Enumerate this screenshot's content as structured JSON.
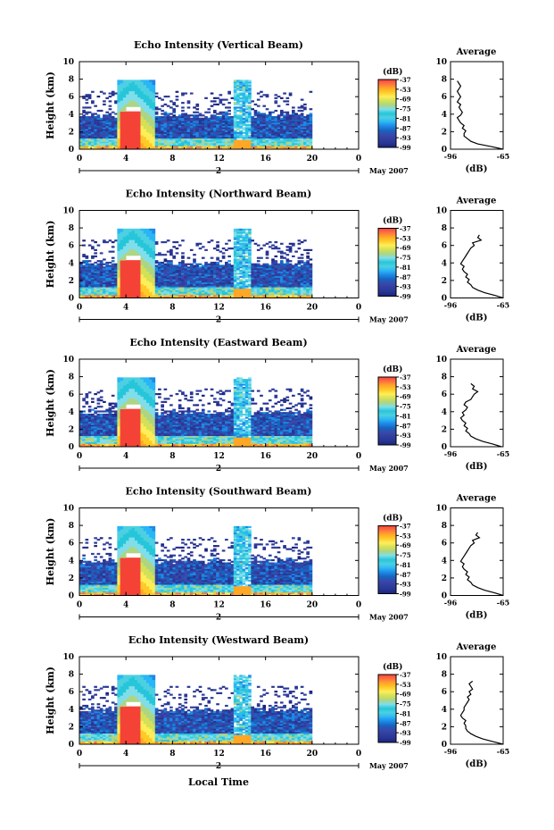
{
  "panel_titles": [
    "Echo Intensity (Vertical Beam)",
    "Echo Intensity (Northward Beam)",
    "Echo Intensity (Eastward Beam)",
    "Echo Intensity (Southward Beam)",
    "Echo Intensity (Westward Beam)"
  ],
  "ylabel": "Height (km)",
  "xlabel": "Local Time",
  "date_day": "2",
  "date_month": "May 2007",
  "x_ticks": [
    "0",
    "4",
    "8",
    "12",
    "16",
    "20",
    "0"
  ],
  "y_ticks": [
    "0",
    "2",
    "4",
    "6",
    "8",
    "10"
  ],
  "colorbar": {
    "unit": "(dB)",
    "ticks": [
      "-37",
      "-53",
      "-69",
      "-75",
      "-81",
      "-87",
      "-93",
      "-99"
    ],
    "colors": [
      "#1a237e",
      "#283593",
      "#303f9f",
      "#3949ab",
      "#1565c0",
      "#1e88e5",
      "#29b6f6",
      "#4dd0e1",
      "#26c6da",
      "#80deea",
      "#aed581",
      "#d4e157",
      "#ffee58",
      "#ffca28",
      "#ffa726",
      "#ff7043",
      "#f44336"
    ]
  },
  "average_panel": {
    "title": "Average",
    "x_ticks": [
      "-96",
      "-65"
    ],
    "unit": "(dB)",
    "y_ticks": [
      "0",
      "2",
      "4",
      "6",
      "8",
      "10"
    ]
  },
  "chart_data": [
    {
      "type": "heatmap",
      "title": "Echo Intensity (Vertical Beam)",
      "xlabel": "",
      "ylabel": "Height (km)",
      "xlim": [
        0,
        24
      ],
      "ylim": [
        0,
        10
      ],
      "colorbar_range_db": [
        -99,
        -37
      ],
      "average_profile": {
        "height_km": [
          0,
          0.3,
          0.6,
          0.9,
          1.2,
          1.5,
          1.8,
          2.1,
          2.4,
          2.7,
          3.0,
          3.3,
          3.6,
          3.9,
          4.2,
          4.5,
          4.8,
          5.1,
          5.4,
          5.7,
          6.0,
          6.3,
          6.6,
          6.9,
          7.2,
          7.5,
          7.8
        ],
        "db": [
          -65,
          -72,
          -80,
          -84,
          -86,
          -88,
          -88,
          -87,
          -89,
          -88,
          -90,
          -91,
          -92,
          -90,
          -89,
          -90,
          -91,
          -90,
          -92,
          -91,
          -90,
          -91,
          -92,
          -91,
          -90,
          -91,
          -92
        ]
      }
    },
    {
      "type": "heatmap",
      "title": "Echo Intensity (Northward Beam)",
      "xlabel": "",
      "ylabel": "Height (km)",
      "xlim": [
        0,
        24
      ],
      "ylim": [
        0,
        10
      ],
      "colorbar_range_db": [
        -99,
        -37
      ],
      "average_profile": {
        "height_km": [
          0,
          0.3,
          0.6,
          0.9,
          1.2,
          1.5,
          1.8,
          2.1,
          2.4,
          2.7,
          3.0,
          3.3,
          3.6,
          3.9,
          4.2,
          4.5,
          4.8,
          5.1,
          5.4,
          5.7,
          6.0,
          6.3,
          6.6,
          6.9,
          7.2
        ],
        "db": [
          -65,
          -70,
          -76,
          -80,
          -83,
          -84,
          -86,
          -85,
          -87,
          -86,
          -88,
          -89,
          -88,
          -90,
          -89,
          -88,
          -87,
          -86,
          -85,
          -84,
          -82,
          -83,
          -78,
          -80,
          -79
        ]
      }
    },
    {
      "type": "heatmap",
      "title": "Echo Intensity (Eastward Beam)",
      "xlabel": "",
      "ylabel": "Height (km)",
      "xlim": [
        0,
        24
      ],
      "ylim": [
        0,
        10
      ],
      "colorbar_range_db": [
        -99,
        -37
      ],
      "average_profile": {
        "height_km": [
          0,
          0.3,
          0.6,
          0.9,
          1.2,
          1.5,
          1.8,
          2.1,
          2.4,
          2.7,
          3.0,
          3.3,
          3.6,
          3.9,
          4.2,
          4.5,
          4.8,
          5.1,
          5.4,
          5.7,
          6.0,
          6.3,
          6.6,
          6.9,
          7.2
        ],
        "db": [
          -66,
          -71,
          -77,
          -81,
          -84,
          -85,
          -87,
          -86,
          -88,
          -87,
          -89,
          -90,
          -88,
          -89,
          -87,
          -86,
          -88,
          -87,
          -84,
          -83,
          -82,
          -80,
          -83,
          -82,
          -84
        ]
      }
    },
    {
      "type": "heatmap",
      "title": "Echo Intensity (Southward Beam)",
      "xlabel": "",
      "ylabel": "Height (km)",
      "xlim": [
        0,
        24
      ],
      "ylim": [
        0,
        10
      ],
      "colorbar_range_db": [
        -99,
        -37
      ],
      "average_profile": {
        "height_km": [
          0,
          0.3,
          0.6,
          0.9,
          1.2,
          1.5,
          1.8,
          2.1,
          2.4,
          2.7,
          3.0,
          3.3,
          3.6,
          3.9,
          4.2,
          4.5,
          4.8,
          5.1,
          5.4,
          5.7,
          6.0,
          6.3,
          6.6,
          6.9,
          7.2
        ],
        "db": [
          -65,
          -70,
          -76,
          -80,
          -83,
          -84,
          -86,
          -85,
          -87,
          -86,
          -88,
          -89,
          -88,
          -90,
          -89,
          -88,
          -87,
          -86,
          -85,
          -84,
          -82,
          -83,
          -79,
          -81,
          -80
        ]
      }
    },
    {
      "type": "heatmap",
      "title": "Echo Intensity (Westward Beam)",
      "xlabel": "Local Time",
      "ylabel": "Height (km)",
      "xlim": [
        0,
        24
      ],
      "ylim": [
        0,
        10
      ],
      "colorbar_range_db": [
        -99,
        -37
      ],
      "average_profile": {
        "height_km": [
          0,
          0.3,
          0.6,
          0.9,
          1.2,
          1.5,
          1.8,
          2.1,
          2.4,
          2.7,
          3.0,
          3.3,
          3.6,
          3.9,
          4.2,
          4.5,
          4.8,
          5.1,
          5.4,
          5.7,
          6.0,
          6.3,
          6.6,
          6.9,
          7.2
        ],
        "db": [
          -65,
          -71,
          -77,
          -81,
          -84,
          -86,
          -87,
          -87,
          -88,
          -87,
          -89,
          -90,
          -89,
          -88,
          -88,
          -87,
          -86,
          -85,
          -86,
          -84,
          -85,
          -83,
          -84,
          -85,
          -83
        ]
      }
    }
  ]
}
